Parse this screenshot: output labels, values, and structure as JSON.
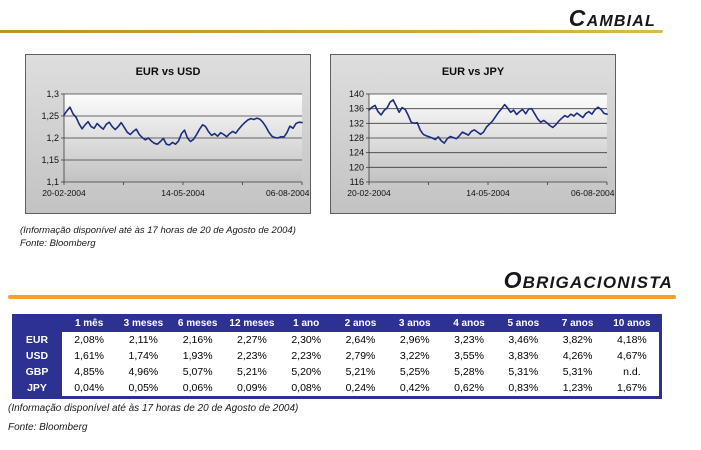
{
  "sections": {
    "cambial": {
      "title": "Cambial",
      "rule_color": "#c9a22b"
    },
    "obrigacionista": {
      "title": "Obrigacionista",
      "rule_color": "#f0a22e"
    }
  },
  "footnote": {
    "info": "(Informação disponível até às 17 horas de 20 de Agosto de 2004)",
    "source": "Fonte: Bloomberg"
  },
  "chart_data": [
    {
      "type": "line",
      "title": "EUR vs USD",
      "legend": "none",
      "grid": "horizontal",
      "line_color": "#1c2c7e",
      "ylim": [
        1.1,
        1.3
      ],
      "y_ticks": [
        1.1,
        1.15,
        1.2,
        1.25,
        1.3
      ],
      "y_tick_labels": [
        "1,1",
        "1,15",
        "1,2",
        "1,25",
        "1,3"
      ],
      "x_tick_labels": [
        "20-02-2004",
        "14-05-2004",
        "06-08-2004"
      ],
      "x_tick_pos": [
        0.0,
        0.5,
        0.94
      ],
      "values": [
        1.252,
        1.262,
        1.27,
        1.255,
        1.247,
        1.232,
        1.221,
        1.23,
        1.237,
        1.226,
        1.222,
        1.233,
        1.226,
        1.22,
        1.231,
        1.236,
        1.226,
        1.219,
        1.226,
        1.235,
        1.224,
        1.213,
        1.208,
        1.215,
        1.22,
        1.208,
        1.201,
        1.196,
        1.2,
        1.193,
        1.188,
        1.186,
        1.192,
        1.199,
        1.186,
        1.184,
        1.19,
        1.186,
        1.193,
        1.21,
        1.218,
        1.2,
        1.192,
        1.197,
        1.208,
        1.22,
        1.23,
        1.226,
        1.214,
        1.206,
        1.21,
        1.204,
        1.212,
        1.208,
        1.203,
        1.21,
        1.215,
        1.211,
        1.22,
        1.228,
        1.235,
        1.241,
        1.244,
        1.242,
        1.245,
        1.243,
        1.236,
        1.226,
        1.213,
        1.204,
        1.201,
        1.2,
        1.203,
        1.202,
        1.212,
        1.227,
        1.222,
        1.233,
        1.236,
        1.235
      ]
    },
    {
      "type": "line",
      "title": "EUR vs JPY",
      "legend": "none",
      "grid": "horizontal",
      "line_color": "#1c2c7e",
      "ylim": [
        116,
        140
      ],
      "y_ticks": [
        116,
        120,
        124,
        128,
        132,
        136,
        140
      ],
      "y_tick_labels": [
        "116",
        "120",
        "124",
        "128",
        "132",
        "136",
        "140"
      ],
      "x_tick_labels": [
        "20-02-2004",
        "14-05-2004",
        "06-08-2004"
      ],
      "x_tick_pos": [
        0.0,
        0.5,
        0.94
      ],
      "values": [
        135.6,
        136.4,
        136.9,
        135.2,
        134.3,
        135.5,
        136.2,
        137.8,
        138.4,
        136.8,
        135.0,
        136.3,
        135.8,
        134.2,
        132.3,
        132.0,
        132.2,
        130.2,
        129.0,
        128.6,
        128.3,
        128.0,
        127.6,
        128.3,
        127.2,
        126.6,
        127.8,
        128.4,
        128.1,
        127.8,
        128.6,
        129.6,
        129.2,
        128.8,
        129.8,
        130.2,
        129.6,
        129.0,
        129.6,
        131.0,
        131.8,
        132.6,
        133.8,
        135.0,
        136.0,
        137.1,
        136.2,
        135.0,
        135.6,
        134.4,
        135.2,
        135.8,
        134.6,
        135.9,
        136.0,
        134.6,
        133.2,
        132.3,
        132.8,
        132.2,
        131.4,
        130.9,
        131.6,
        132.6,
        133.4,
        134.1,
        133.7,
        134.5,
        134.0,
        134.8,
        134.2,
        133.6,
        134.7,
        135.2,
        134.5,
        135.7,
        136.4,
        135.8,
        134.7,
        134.5
      ]
    }
  ],
  "rates_table": {
    "columns": [
      "1 mês",
      "3 meses",
      "6 meses",
      "12 meses",
      "1 ano",
      "2 anos",
      "3 anos",
      "4 anos",
      "5 anos",
      "7 anos",
      "10 anos"
    ],
    "rows": [
      {
        "label": "EUR",
        "values": [
          "2,08%",
          "2,11%",
          "2,16%",
          "2,27%",
          "2,30%",
          "2,64%",
          "2,96%",
          "3,23%",
          "3,46%",
          "3,82%",
          "4,18%"
        ]
      },
      {
        "label": "USD",
        "values": [
          "1,61%",
          "1,74%",
          "1,93%",
          "2,23%",
          "2,23%",
          "2,79%",
          "3,22%",
          "3,55%",
          "3,83%",
          "4,26%",
          "4,67%"
        ]
      },
      {
        "label": "GBP",
        "values": [
          "4,85%",
          "4,96%",
          "5,07%",
          "5,21%",
          "5,20%",
          "5,21%",
          "5,25%",
          "5,28%",
          "5,31%",
          "5,31%",
          "n.d."
        ]
      },
      {
        "label": "JPY",
        "values": [
          "0,04%",
          "0,05%",
          "0,06%",
          "0,09%",
          "0,08%",
          "0,24%",
          "0,42%",
          "0,62%",
          "0,83%",
          "1,23%",
          "1,67%"
        ]
      }
    ],
    "header_bg": "#2d3192"
  }
}
